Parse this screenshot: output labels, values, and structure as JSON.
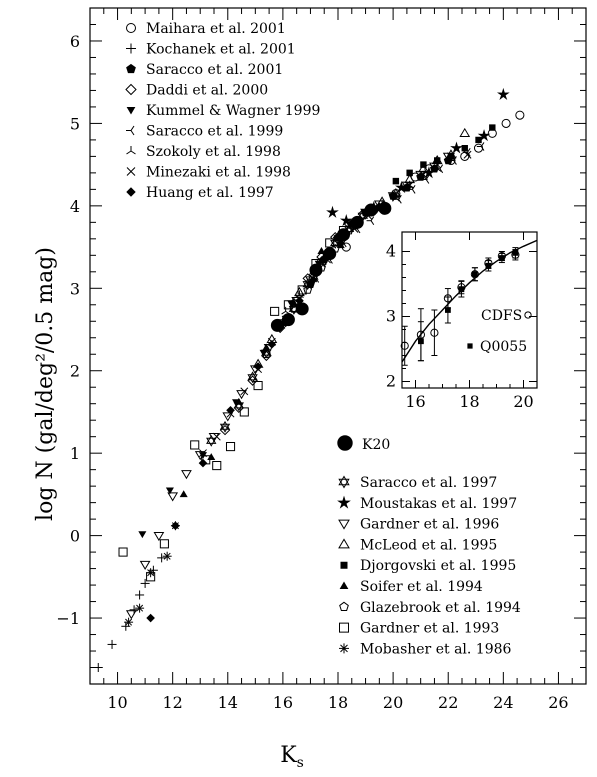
{
  "chart_data": {
    "type": "scatter",
    "xlabel": "K",
    "xlabel_sub": "s",
    "ylabel": "log N (gal/deg²/0.5 mag)",
    "xlim": [
      9,
      27
    ],
    "ylim": [
      -1.8,
      6.4
    ],
    "xticks": [
      10,
      12,
      14,
      16,
      18,
      20,
      22,
      24,
      26
    ],
    "yticks": [
      -1,
      0,
      1,
      2,
      3,
      4,
      5,
      6
    ],
    "series": [
      {
        "name": "Maihara et al. 2001",
        "marker": "circle-open",
        "points": [
          [
            18.3,
            3.5
          ],
          [
            19.3,
            3.95
          ],
          [
            20.1,
            4.15
          ],
          [
            20.8,
            4.35
          ],
          [
            21.3,
            4.45
          ],
          [
            22.1,
            4.55
          ],
          [
            22.6,
            4.6
          ],
          [
            23.1,
            4.7
          ],
          [
            23.6,
            4.88
          ],
          [
            24.1,
            5.0
          ],
          [
            24.6,
            5.1
          ]
        ]
      },
      {
        "name": "Kochanek et al. 2001",
        "marker": "plus",
        "points": [
          [
            9.3,
            -1.6
          ],
          [
            9.8,
            -1.32
          ],
          [
            10.3,
            -1.1
          ],
          [
            10.6,
            -0.9
          ],
          [
            10.8,
            -0.72
          ],
          [
            11.0,
            -0.58
          ],
          [
            11.3,
            -0.42
          ],
          [
            11.6,
            -0.27
          ]
        ]
      },
      {
        "name": "Saracco et al. 2001",
        "marker": "pentagon-filled",
        "points": [
          [
            17.0,
            3.05
          ],
          [
            17.5,
            3.35
          ],
          [
            18.0,
            3.62
          ],
          [
            18.5,
            3.78
          ],
          [
            19.0,
            3.92
          ],
          [
            19.5,
            3.98
          ],
          [
            20.0,
            4.12
          ],
          [
            20.5,
            4.22
          ],
          [
            21.0,
            4.35
          ],
          [
            21.5,
            4.45
          ],
          [
            22.0,
            4.55
          ]
        ]
      },
      {
        "name": "Daddi et al. 2000",
        "marker": "diamond-open",
        "points": [
          [
            13.9,
            1.28
          ],
          [
            14.4,
            1.55
          ],
          [
            14.9,
            1.88
          ],
          [
            15.4,
            2.18
          ],
          [
            15.9,
            2.52
          ],
          [
            16.4,
            2.82
          ],
          [
            16.9,
            3.12
          ],
          [
            17.4,
            3.38
          ],
          [
            17.9,
            3.62
          ],
          [
            18.4,
            3.78
          ],
          [
            18.9,
            3.9
          ]
        ]
      },
      {
        "name": "Kummel & Wagner 1999",
        "marker": "triangle-down-filled",
        "points": [
          [
            10.9,
            0.02
          ],
          [
            11.9,
            0.55
          ],
          [
            13.1,
            0.98
          ],
          [
            14.3,
            1.62
          ],
          [
            15.3,
            2.22
          ],
          [
            16.3,
            2.82
          ],
          [
            17.3,
            3.3
          ],
          [
            18.3,
            3.65
          ],
          [
            19.3,
            3.95
          ]
        ]
      },
      {
        "name": "Saracco et al. 1999",
        "marker": "tri-left",
        "points": [
          [
            17.2,
            3.12
          ],
          [
            17.7,
            3.35
          ],
          [
            18.2,
            3.55
          ],
          [
            18.7,
            3.72
          ],
          [
            19.2,
            3.82
          ],
          [
            19.7,
            3.95
          ],
          [
            20.2,
            4.08
          ],
          [
            20.7,
            4.2
          ],
          [
            21.2,
            4.32
          ],
          [
            21.7,
            4.45
          ],
          [
            22.2,
            4.55
          ],
          [
            22.7,
            4.65
          ],
          [
            23.2,
            4.72
          ]
        ]
      },
      {
        "name": "Szokoly et al. 1998",
        "marker": "tri-up",
        "points": [
          [
            16.1,
            2.72
          ],
          [
            16.6,
            2.92
          ],
          [
            17.1,
            3.2
          ],
          [
            17.6,
            3.42
          ],
          [
            18.1,
            3.62
          ],
          [
            18.6,
            3.78
          ],
          [
            19.1,
            3.92
          ],
          [
            19.6,
            4.02
          ],
          [
            20.1,
            4.12
          ],
          [
            20.6,
            4.25
          ],
          [
            21.1,
            4.35
          ],
          [
            21.6,
            4.45
          ]
        ]
      },
      {
        "name": "Minezaki et al. 1998",
        "marker": "cross",
        "points": [
          [
            13.1,
            1.0
          ],
          [
            13.6,
            1.2
          ],
          [
            14.1,
            1.48
          ],
          [
            14.6,
            1.75
          ],
          [
            15.1,
            2.02
          ],
          [
            15.6,
            2.35
          ],
          [
            16.1,
            2.62
          ],
          [
            16.6,
            2.88
          ],
          [
            17.1,
            3.12
          ],
          [
            17.6,
            3.35
          ],
          [
            18.1,
            3.58
          ],
          [
            18.6,
            3.72
          ],
          [
            19.1,
            3.88
          ],
          [
            19.6,
            4.0
          ],
          [
            20.1,
            4.1
          ],
          [
            20.6,
            4.25
          ],
          [
            21.1,
            4.38
          ],
          [
            21.6,
            4.5
          ],
          [
            22.1,
            4.6
          ],
          [
            22.7,
            4.62
          ]
        ]
      },
      {
        "name": "Huang et al. 1997",
        "marker": "diamond-filled",
        "points": [
          [
            11.2,
            -1.0
          ],
          [
            12.1,
            0.12
          ],
          [
            13.1,
            0.88
          ],
          [
            14.1,
            1.52
          ],
          [
            15.1,
            2.05
          ],
          [
            15.6,
            2.32
          ],
          [
            16.1,
            2.58
          ],
          [
            16.6,
            2.85
          ],
          [
            17.1,
            3.1
          ],
          [
            17.6,
            3.38
          ],
          [
            18.1,
            3.55
          ]
        ]
      },
      {
        "name": "K20",
        "marker": "circle-big",
        "points": [
          [
            15.8,
            2.55
          ],
          [
            16.2,
            2.62
          ],
          [
            16.7,
            2.75
          ],
          [
            17.2,
            3.22
          ],
          [
            17.7,
            3.42
          ],
          [
            18.2,
            3.65
          ],
          [
            18.7,
            3.8
          ],
          [
            19.2,
            3.95
          ],
          [
            19.7,
            3.97
          ]
        ]
      },
      {
        "name": "Saracco et al. 1997",
        "marker": "star6-open",
        "points": [
          [
            13.4,
            1.15
          ],
          [
            13.9,
            1.32
          ],
          [
            14.4,
            1.58
          ],
          [
            14.9,
            1.92
          ],
          [
            15.4,
            2.22
          ],
          [
            15.9,
            2.55
          ],
          [
            16.4,
            2.75
          ],
          [
            16.9,
            3.05
          ],
          [
            17.4,
            3.32
          ],
          [
            17.9,
            3.55
          ],
          [
            18.4,
            3.72
          ],
          [
            18.9,
            3.88
          ]
        ]
      },
      {
        "name": "Moustakas et al. 1997",
        "marker": "star5",
        "points": [
          [
            17.8,
            3.92
          ],
          [
            18.3,
            3.82
          ],
          [
            19.3,
            3.98
          ],
          [
            20.3,
            4.22
          ],
          [
            21.3,
            4.4
          ],
          [
            22.3,
            4.7
          ],
          [
            23.3,
            4.85
          ],
          [
            24.0,
            5.35
          ]
        ]
      },
      {
        "name": "Gardner et al. 1996",
        "marker": "triangle-down-open",
        "points": [
          [
            10.5,
            -0.95
          ],
          [
            11.0,
            -0.35
          ],
          [
            11.5,
            0.0
          ],
          [
            12.0,
            0.48
          ],
          [
            12.5,
            0.75
          ],
          [
            13.0,
            0.98
          ],
          [
            13.5,
            1.2
          ],
          [
            14.0,
            1.45
          ],
          [
            14.5,
            1.72
          ],
          [
            15.0,
            2.02
          ],
          [
            15.5,
            2.28
          ],
          [
            16.0,
            2.58
          ],
          [
            16.5,
            2.85
          ],
          [
            17.0,
            3.1
          ],
          [
            17.5,
            3.32
          ],
          [
            18.0,
            3.58
          ],
          [
            18.5,
            3.75
          ],
          [
            19.0,
            3.92
          ],
          [
            19.5,
            4.02
          ],
          [
            20.0,
            4.12
          ],
          [
            20.5,
            4.25
          ],
          [
            21.0,
            4.38
          ],
          [
            21.5,
            4.48
          ],
          [
            22.0,
            4.6
          ]
        ]
      },
      {
        "name": "McLeod et al. 1995",
        "marker": "triangle-up-open",
        "points": [
          [
            15.1,
            2.08
          ],
          [
            15.6,
            2.38
          ],
          [
            16.1,
            2.62
          ],
          [
            16.6,
            2.95
          ],
          [
            17.1,
            3.15
          ],
          [
            17.6,
            3.42
          ],
          [
            18.1,
            3.62
          ],
          [
            18.6,
            3.78
          ],
          [
            19.1,
            3.92
          ],
          [
            19.6,
            4.05
          ],
          [
            20.1,
            4.15
          ],
          [
            20.6,
            4.32
          ],
          [
            21.1,
            4.45
          ],
          [
            21.6,
            4.55
          ],
          [
            22.1,
            4.62
          ],
          [
            22.6,
            4.88
          ]
        ]
      },
      {
        "name": "Djorgovski et al. 1995",
        "marker": "square-filled",
        "points": [
          [
            20.1,
            4.3
          ],
          [
            20.6,
            4.4
          ],
          [
            21.1,
            4.5
          ],
          [
            21.6,
            4.55
          ],
          [
            22.1,
            4.6
          ],
          [
            22.6,
            4.7
          ],
          [
            23.1,
            4.8
          ],
          [
            23.6,
            4.95
          ]
        ]
      },
      {
        "name": "Soifer et al. 1994",
        "marker": "triangle-up-filled",
        "points": [
          [
            12.4,
            0.5
          ],
          [
            13.4,
            0.95
          ],
          [
            14.4,
            1.62
          ],
          [
            15.4,
            2.28
          ],
          [
            16.4,
            2.82
          ],
          [
            17.4,
            3.45
          ],
          [
            18.1,
            3.52
          ]
        ]
      },
      {
        "name": "Glazebrook et al. 1994",
        "marker": "pentagon-open",
        "points": [
          [
            15.4,
            2.2
          ],
          [
            15.9,
            2.55
          ],
          [
            16.4,
            2.75
          ],
          [
            16.9,
            2.98
          ],
          [
            17.4,
            3.25
          ],
          [
            17.9,
            3.48
          ],
          [
            18.4,
            3.7
          ]
        ]
      },
      {
        "name": "Gardner et al. 1993",
        "marker": "square-open",
        "points": [
          [
            10.2,
            -0.2
          ],
          [
            11.2,
            -0.5
          ],
          [
            11.7,
            -0.1
          ],
          [
            12.8,
            1.1
          ],
          [
            13.2,
            0.92
          ],
          [
            13.6,
            0.85
          ],
          [
            14.1,
            1.08
          ],
          [
            14.6,
            1.5
          ],
          [
            15.1,
            1.82
          ],
          [
            15.7,
            2.72
          ],
          [
            16.2,
            2.8
          ],
          [
            16.7,
            2.98
          ],
          [
            17.2,
            3.3
          ],
          [
            17.7,
            3.55
          ],
          [
            18.2,
            3.7
          ]
        ]
      },
      {
        "name": "Mobasher et al. 1986",
        "marker": "asterisk",
        "points": [
          [
            10.4,
            -1.05
          ],
          [
            10.8,
            -0.88
          ],
          [
            11.2,
            -0.45
          ],
          [
            11.8,
            -0.25
          ],
          [
            12.1,
            0.12
          ]
        ]
      }
    ],
    "legend_top": [
      "Maihara et al. 2001",
      "Kochanek et al. 2001",
      "Saracco et al. 2001",
      "Daddi et al. 2000",
      "Kummel & Wagner 1999",
      "Saracco et al. 1999",
      "Szokoly  et al. 1998",
      "Minezaki et al. 1998",
      "Huang et al. 1997"
    ],
    "legend_k20": "K20",
    "legend_bottom": [
      "Saracco et al. 1997",
      "Moustakas et al. 1997",
      "Gardner et al. 1996",
      "McLeod et al. 1995",
      "Djorgovski et al. 1995",
      "Soifer et al. 1994",
      "Glazebrook et al. 1994",
      "Gardner et al. 1993",
      "Mobasher et al. 1986"
    ],
    "inset": {
      "xlim": [
        15.5,
        20.5
      ],
      "ylim": [
        1.9,
        4.3
      ],
      "xticks": [
        16,
        18,
        20
      ],
      "yticks": [
        2,
        3,
        4
      ],
      "labels": [
        "CDFS",
        "Q0055"
      ],
      "cdfs": [
        [
          15.6,
          2.55,
          0.3
        ],
        [
          16.2,
          2.72,
          0.4
        ],
        [
          16.7,
          2.75,
          0.35
        ],
        [
          17.2,
          3.28,
          0.15
        ],
        [
          17.7,
          3.45,
          0.1
        ],
        [
          18.2,
          3.65,
          0.1
        ],
        [
          18.7,
          3.82,
          0.08
        ],
        [
          19.2,
          3.93,
          0.07
        ],
        [
          19.7,
          3.95,
          0.08
        ]
      ],
      "q0055": [
        [
          16.2,
          2.62,
          0.3
        ],
        [
          17.2,
          3.1,
          0.2
        ],
        [
          17.7,
          3.42,
          0.12
        ],
        [
          18.2,
          3.65,
          0.1
        ],
        [
          18.7,
          3.78,
          0.08
        ],
        [
          19.2,
          3.9,
          0.07
        ],
        [
          19.7,
          3.98,
          0.08
        ]
      ],
      "model": [
        [
          15.5,
          2.3
        ],
        [
          16.0,
          2.62
        ],
        [
          16.5,
          2.88
        ],
        [
          17.0,
          3.1
        ],
        [
          17.5,
          3.32
        ],
        [
          18.0,
          3.52
        ],
        [
          18.5,
          3.7
        ],
        [
          19.0,
          3.85
        ],
        [
          19.5,
          3.98
        ],
        [
          20.0,
          4.08
        ],
        [
          20.5,
          4.17
        ]
      ]
    }
  }
}
